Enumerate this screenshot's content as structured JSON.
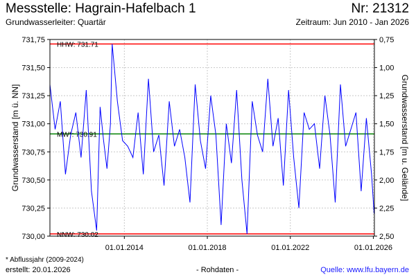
{
  "header": {
    "title": "Messstelle: Hagrain-Hafelbach 1",
    "number": "Nr: 21312",
    "subtitle": "Grundwasserleiter: Quartär",
    "period": "Zeitraum: Jun 2010 - Jan 2026"
  },
  "footer": {
    "footnote": "* Abflussjahr (2009-2024)",
    "created": "erstellt:  20.01.2026",
    "rawdata": "- Rohdaten -",
    "source": "Quelle: www.lfu.bayern.de"
  },
  "colors": {
    "series": "#0000ff",
    "extremes": "#ff0000",
    "mean": "#008000",
    "grid": "#c8c8c8"
  },
  "chart_data": {
    "type": "line",
    "title": "Messstelle: Hagrain-Hafelbach 1",
    "ylabel": "Grundwasserstand [m ü. NN]",
    "y2label": "Grundwasserstand [m u. Gelände]",
    "ylim": [
      730.0,
      731.75
    ],
    "y2lim": [
      2.5,
      0.75
    ],
    "xlim": [
      "2010-06-01",
      "2026-01-20"
    ],
    "grid": true,
    "yticks": [
      "731,75",
      "731,50",
      "731,25",
      "731,00",
      "730,75",
      "730,50",
      "730,25",
      "730,00"
    ],
    "y2ticks": [
      "0,75",
      "1,00",
      "1,25",
      "1,50",
      "1,75",
      "2,00",
      "2,25",
      "2,50"
    ],
    "xticks": [
      "01.01.2014",
      "01.01.2018",
      "01.01.2022",
      "01.01.2026"
    ],
    "reference_lines": [
      {
        "label": "HHW: 731.71",
        "value": 731.71,
        "color": "#ff0000"
      },
      {
        "label": "MW*: 730.91",
        "value": 730.91,
        "color": "#008000"
      },
      {
        "label": "NNW: 730.02",
        "value": 730.02,
        "color": "#ff0000"
      }
    ],
    "series": [
      {
        "x": [
          "2010-06-01",
          "2010-09-01",
          "2010-12-01",
          "2011-03-01",
          "2011-06-01",
          "2011-09-01",
          "2011-12-01",
          "2012-03-01",
          "2012-06-01",
          "2012-09-01",
          "2012-11-01",
          "2013-01-01",
          "2013-03-01",
          "2013-05-01",
          "2013-06-01",
          "2013-09-01",
          "2013-12-01",
          "2014-03-01",
          "2014-06-01",
          "2014-09-01",
          "2014-12-01",
          "2015-03-01",
          "2015-06-01",
          "2015-09-01",
          "2015-12-01",
          "2016-03-01",
          "2016-06-01",
          "2016-09-01",
          "2016-12-01",
          "2017-03-01",
          "2017-06-01",
          "2017-09-01",
          "2017-12-01",
          "2018-03-01",
          "2018-06-01",
          "2018-09-01",
          "2018-12-01",
          "2019-03-01",
          "2019-06-01",
          "2019-09-01",
          "2019-12-01",
          "2020-03-01",
          "2020-06-01",
          "2020-09-01",
          "2020-12-01",
          "2021-03-01",
          "2021-06-01",
          "2021-09-01",
          "2021-12-01",
          "2022-03-01",
          "2022-06-01",
          "2022-09-01",
          "2022-12-01",
          "2023-03-01",
          "2023-06-01",
          "2023-09-01",
          "2023-12-01",
          "2024-03-01",
          "2024-06-01",
          "2024-09-01",
          "2024-12-01",
          "2025-03-01",
          "2025-06-01",
          "2025-09-01",
          "2025-12-01",
          "2026-01-15"
        ],
        "values": [
          731.35,
          730.95,
          731.2,
          730.55,
          730.9,
          731.1,
          730.7,
          731.3,
          730.4,
          730.05,
          731.15,
          730.85,
          730.6,
          731.0,
          731.71,
          731.2,
          730.85,
          730.8,
          730.7,
          731.1,
          730.55,
          731.4,
          730.75,
          730.9,
          730.45,
          731.2,
          730.8,
          730.95,
          730.7,
          730.3,
          731.35,
          730.85,
          730.6,
          731.25,
          730.9,
          730.1,
          731.0,
          730.65,
          731.3,
          730.5,
          730.02,
          731.2,
          730.9,
          730.75,
          731.4,
          730.8,
          731.05,
          730.45,
          731.3,
          730.7,
          730.25,
          731.1,
          730.95,
          731.0,
          730.6,
          731.25,
          730.9,
          730.3,
          731.35,
          730.8,
          730.95,
          731.1,
          730.4,
          731.05,
          730.55,
          730.2
        ]
      }
    ]
  }
}
